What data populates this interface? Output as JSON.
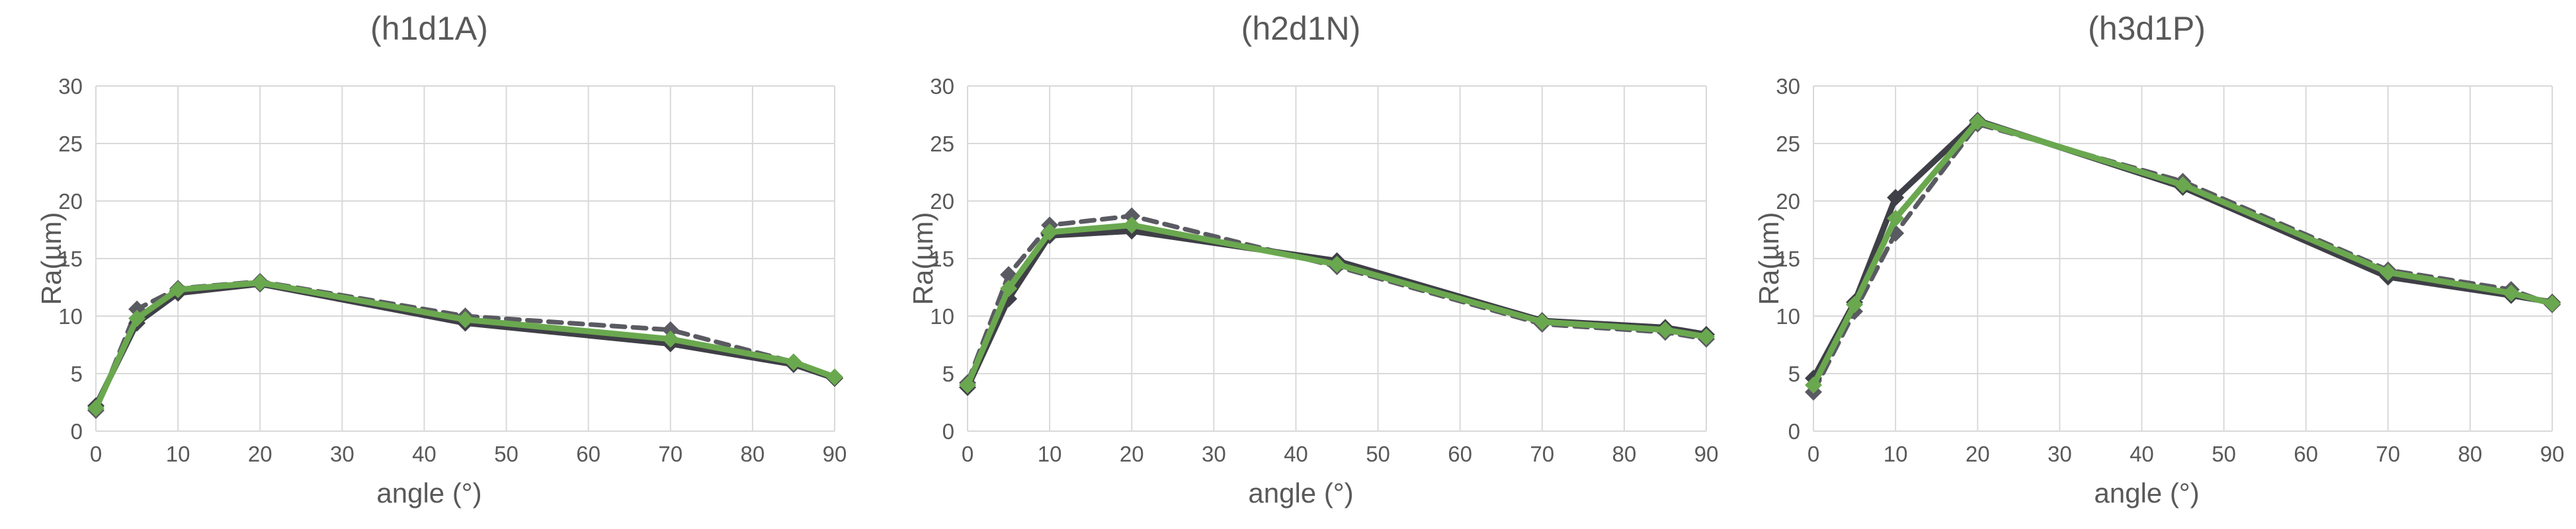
{
  "chart_data": [
    {
      "type": "line",
      "title": "(h1d1A)",
      "xlabel": "angle (°)",
      "ylabel": "Ra(µm)",
      "xlim": [
        0,
        90
      ],
      "ylim": [
        0,
        30
      ],
      "xticks": [
        "0",
        "10",
        "20",
        "30",
        "40",
        "50",
        "60",
        "70",
        "80",
        "90"
      ],
      "yticks": [
        "0",
        "5",
        "10",
        "15",
        "20",
        "25",
        "30"
      ],
      "grid": true,
      "series": [
        {
          "color": "#5a5a62",
          "dashed": true,
          "x": [
            0,
            5,
            10,
            20,
            45,
            70,
            85,
            90
          ],
          "y": [
            1.8,
            10.6,
            12.4,
            13.0,
            10.0,
            8.8,
            6.0,
            4.6
          ]
        },
        {
          "color": "#3f3f47",
          "dashed": false,
          "x": [
            0,
            5,
            10,
            20,
            45,
            70,
            85,
            90
          ],
          "y": [
            2.2,
            9.4,
            12.0,
            12.8,
            9.4,
            7.6,
            5.8,
            4.6
          ]
        },
        {
          "color": "#6aa84f",
          "dashed": false,
          "x": [
            0,
            5,
            10,
            20,
            45,
            70,
            85,
            90
          ],
          "y": [
            2.0,
            9.8,
            12.3,
            12.9,
            9.7,
            8.0,
            6.0,
            4.7
          ]
        }
      ]
    },
    {
      "type": "line",
      "title": "(h2d1N)",
      "xlabel": "angle (°)",
      "ylabel": "Ra(µm)",
      "xlim": [
        0,
        90
      ],
      "ylim": [
        0,
        30
      ],
      "xticks": [
        "0",
        "10",
        "20",
        "30",
        "40",
        "50",
        "60",
        "70",
        "80",
        "90"
      ],
      "yticks": [
        "0",
        "5",
        "10",
        "15",
        "20",
        "25",
        "30"
      ],
      "grid": true,
      "series": [
        {
          "color": "#5a5a62",
          "dashed": true,
          "x": [
            0,
            5,
            10,
            20,
            45,
            70,
            85,
            90
          ],
          "y": [
            4.2,
            13.6,
            17.9,
            18.7,
            14.3,
            9.3,
            8.6,
            8.0
          ]
        },
        {
          "color": "#3f3f47",
          "dashed": false,
          "x": [
            0,
            5,
            10,
            20,
            45,
            70,
            85,
            90
          ],
          "y": [
            3.8,
            11.5,
            17.0,
            17.4,
            14.8,
            9.6,
            9.0,
            8.4
          ]
        },
        {
          "color": "#6aa84f",
          "dashed": false,
          "x": [
            0,
            5,
            10,
            20,
            45,
            70,
            85,
            90
          ],
          "y": [
            4.0,
            12.4,
            17.3,
            17.9,
            14.5,
            9.5,
            8.8,
            8.2
          ]
        }
      ]
    },
    {
      "type": "line",
      "title": "(h3d1P)",
      "xlabel": "angle (°)",
      "ylabel": "Ra(µm)",
      "xlim": [
        0,
        90
      ],
      "ylim": [
        0,
        30
      ],
      "xticks": [
        "0",
        "10",
        "20",
        "30",
        "40",
        "50",
        "60",
        "70",
        "80",
        "90"
      ],
      "yticks": [
        "0",
        "5",
        "10",
        "15",
        "20",
        "25",
        "30"
      ],
      "grid": true,
      "series": [
        {
          "color": "#5a5a62",
          "dashed": true,
          "x": [
            0,
            5,
            10,
            20,
            45,
            70,
            85,
            90
          ],
          "y": [
            3.4,
            10.4,
            17.2,
            26.7,
            21.7,
            14.0,
            12.3,
            11.0
          ]
        },
        {
          "color": "#3f3f47",
          "dashed": false,
          "x": [
            0,
            5,
            10,
            20,
            45,
            70,
            85,
            90
          ],
          "y": [
            4.6,
            11.2,
            20.3,
            27.0,
            21.2,
            13.4,
            11.8,
            11.2
          ]
        },
        {
          "color": "#6aa84f",
          "dashed": false,
          "x": [
            0,
            5,
            10,
            20,
            45,
            70,
            85,
            90
          ],
          "y": [
            4.0,
            11.0,
            18.5,
            26.9,
            21.4,
            13.8,
            12.0,
            11.1
          ]
        }
      ]
    }
  ]
}
